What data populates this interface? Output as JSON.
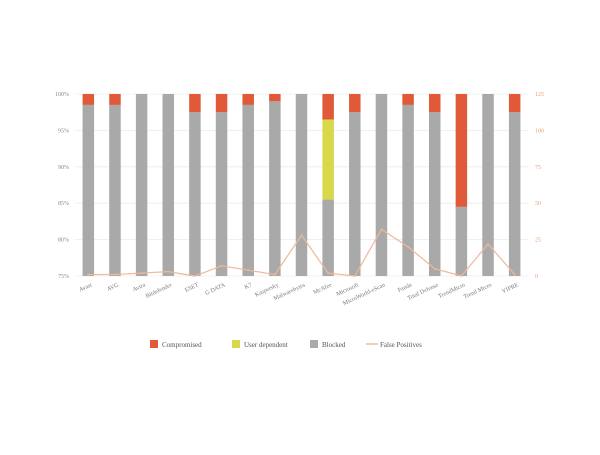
{
  "chart_data": {
    "type": "bar",
    "stacked": true,
    "categories": [
      "Avast",
      "AVG",
      "Avira",
      "Bitdefender",
      "ESET",
      "G DATA",
      "K7",
      "Kaspersky",
      "Malwarebytes",
      "McAfee",
      "Microsoft",
      "MicroWorld-eScan",
      "Panda",
      "Total Defense",
      "TrendMicro",
      "Trend Micro",
      "VIPRE"
    ],
    "series": [
      {
        "name": "Blocked",
        "values": [
          98.5,
          98.5,
          100,
          100,
          97.5,
          97.5,
          98.5,
          99,
          100,
          85.5,
          97.5,
          100,
          98.5,
          97.5,
          84.5,
          100,
          97.5
        ],
        "color": "#a9a9a9"
      },
      {
        "name": "User dependent",
        "values": [
          0,
          0,
          0,
          0,
          0,
          0,
          0,
          0,
          0,
          11,
          0,
          0,
          0,
          0,
          0,
          0,
          0
        ],
        "color": "#d8d84a"
      },
      {
        "name": "Compromised",
        "values": [
          1.5,
          1.5,
          0,
          0,
          2.5,
          2.5,
          1.5,
          1,
          0,
          3.5,
          2.5,
          0,
          1.5,
          2.5,
          15.5,
          0,
          2.5
        ],
        "color": "#e05a3a"
      }
    ],
    "line_series": {
      "name": "False Positives",
      "axis": "right",
      "values": [
        1,
        1,
        2,
        3,
        0,
        7,
        4,
        1,
        28,
        2,
        0,
        32,
        20,
        5,
        0,
        22,
        1
      ],
      "color": "#f0b898"
    },
    "yaxis_left": {
      "ticks": [
        "75%",
        "80%",
        "85%",
        "90%",
        "95%",
        "100%"
      ],
      "range": [
        75,
        100
      ]
    },
    "yaxis_right": {
      "ticks": [
        "0",
        "25",
        "50",
        "75",
        "100",
        "125"
      ],
      "range": [
        0,
        125
      ]
    },
    "grid": true,
    "legend_position": "bottom",
    "legend": [
      {
        "label": "Compromised",
        "kind": "box",
        "color": "#e05a3a"
      },
      {
        "label": "User dependent",
        "kind": "box",
        "color": "#d8d84a"
      },
      {
        "label": "Blocked",
        "kind": "box",
        "color": "#a9a9a9"
      },
      {
        "label": "False Positives",
        "kind": "line",
        "color": "#f0b898"
      }
    ]
  }
}
